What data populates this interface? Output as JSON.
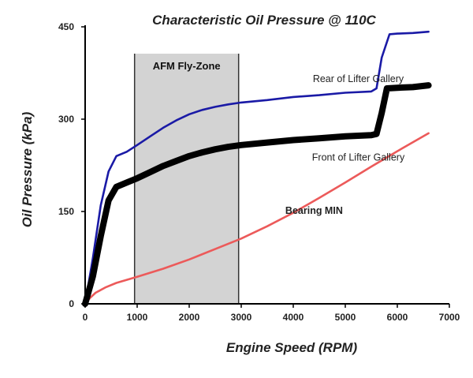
{
  "chart_data": {
    "type": "line",
    "title": "Characteristic Oil Pressure @ 110C",
    "xlabel": "Engine Speed (RPM)",
    "ylabel": "Oil Pressure (kPa)",
    "xlim": [
      0,
      7000
    ],
    "ylim": [
      0,
      450
    ],
    "x_ticks": [
      "0",
      "1000",
      "2000",
      "3000",
      "4000",
      "5000",
      "6000",
      "7000"
    ],
    "y_ticks": [
      "0",
      "150",
      "300",
      "450"
    ],
    "grid": false,
    "shaded_region": {
      "label": "AFM Fly-Zone",
      "x_start": 950,
      "x_end": 2950,
      "color": "#d3d3d3"
    },
    "series": [
      {
        "name": "Rear of Lifter Gallery",
        "color": "#1a1aa6",
        "style": "thin",
        "label_at": {
          "x": 5250,
          "y": 360
        },
        "x": [
          0,
          150,
          300,
          450,
          600,
          800,
          1000,
          1250,
          1500,
          1750,
          2000,
          2250,
          2500,
          2750,
          3000,
          3500,
          4000,
          4500,
          5000,
          5500,
          5600,
          5700,
          5850,
          6000,
          6300,
          6600
        ],
        "y": [
          0,
          75,
          160,
          215,
          240,
          247,
          258,
          272,
          286,
          298,
          308,
          315,
          320,
          324,
          327,
          331,
          336,
          339,
          343,
          345,
          350,
          400,
          438,
          439,
          440,
          442
        ]
      },
      {
        "name": "Front of Lifter Gallery",
        "color": "#000000",
        "style": "thick",
        "label_at": {
          "x": 5250,
          "y": 233
        },
        "x": [
          0,
          150,
          300,
          450,
          600,
          800,
          1000,
          1250,
          1500,
          1750,
          2000,
          2250,
          2500,
          2750,
          3000,
          3500,
          4000,
          4500,
          5000,
          5500,
          5600,
          5700,
          5800,
          6000,
          6300,
          6600
        ],
        "y": [
          0,
          45,
          110,
          168,
          190,
          197,
          204,
          214,
          224,
          232,
          240,
          246,
          251,
          255,
          258,
          262,
          266,
          269,
          272,
          274,
          276,
          310,
          350,
          351,
          352,
          355
        ]
      },
      {
        "name": "Bearing MIN",
        "color": "#ec5a5a",
        "style": "medium",
        "label_at": {
          "x": 4400,
          "y": 146
        },
        "x": [
          0,
          100,
          200,
          400,
          600,
          800,
          1000,
          1500,
          2000,
          2500,
          3000,
          3500,
          4000,
          4500,
          5000,
          5500,
          6000,
          6600
        ],
        "y": [
          0,
          10,
          18,
          27,
          34,
          39,
          44,
          57,
          72,
          89,
          106,
          126,
          148,
          172,
          197,
          223,
          248,
          277
        ]
      }
    ]
  }
}
